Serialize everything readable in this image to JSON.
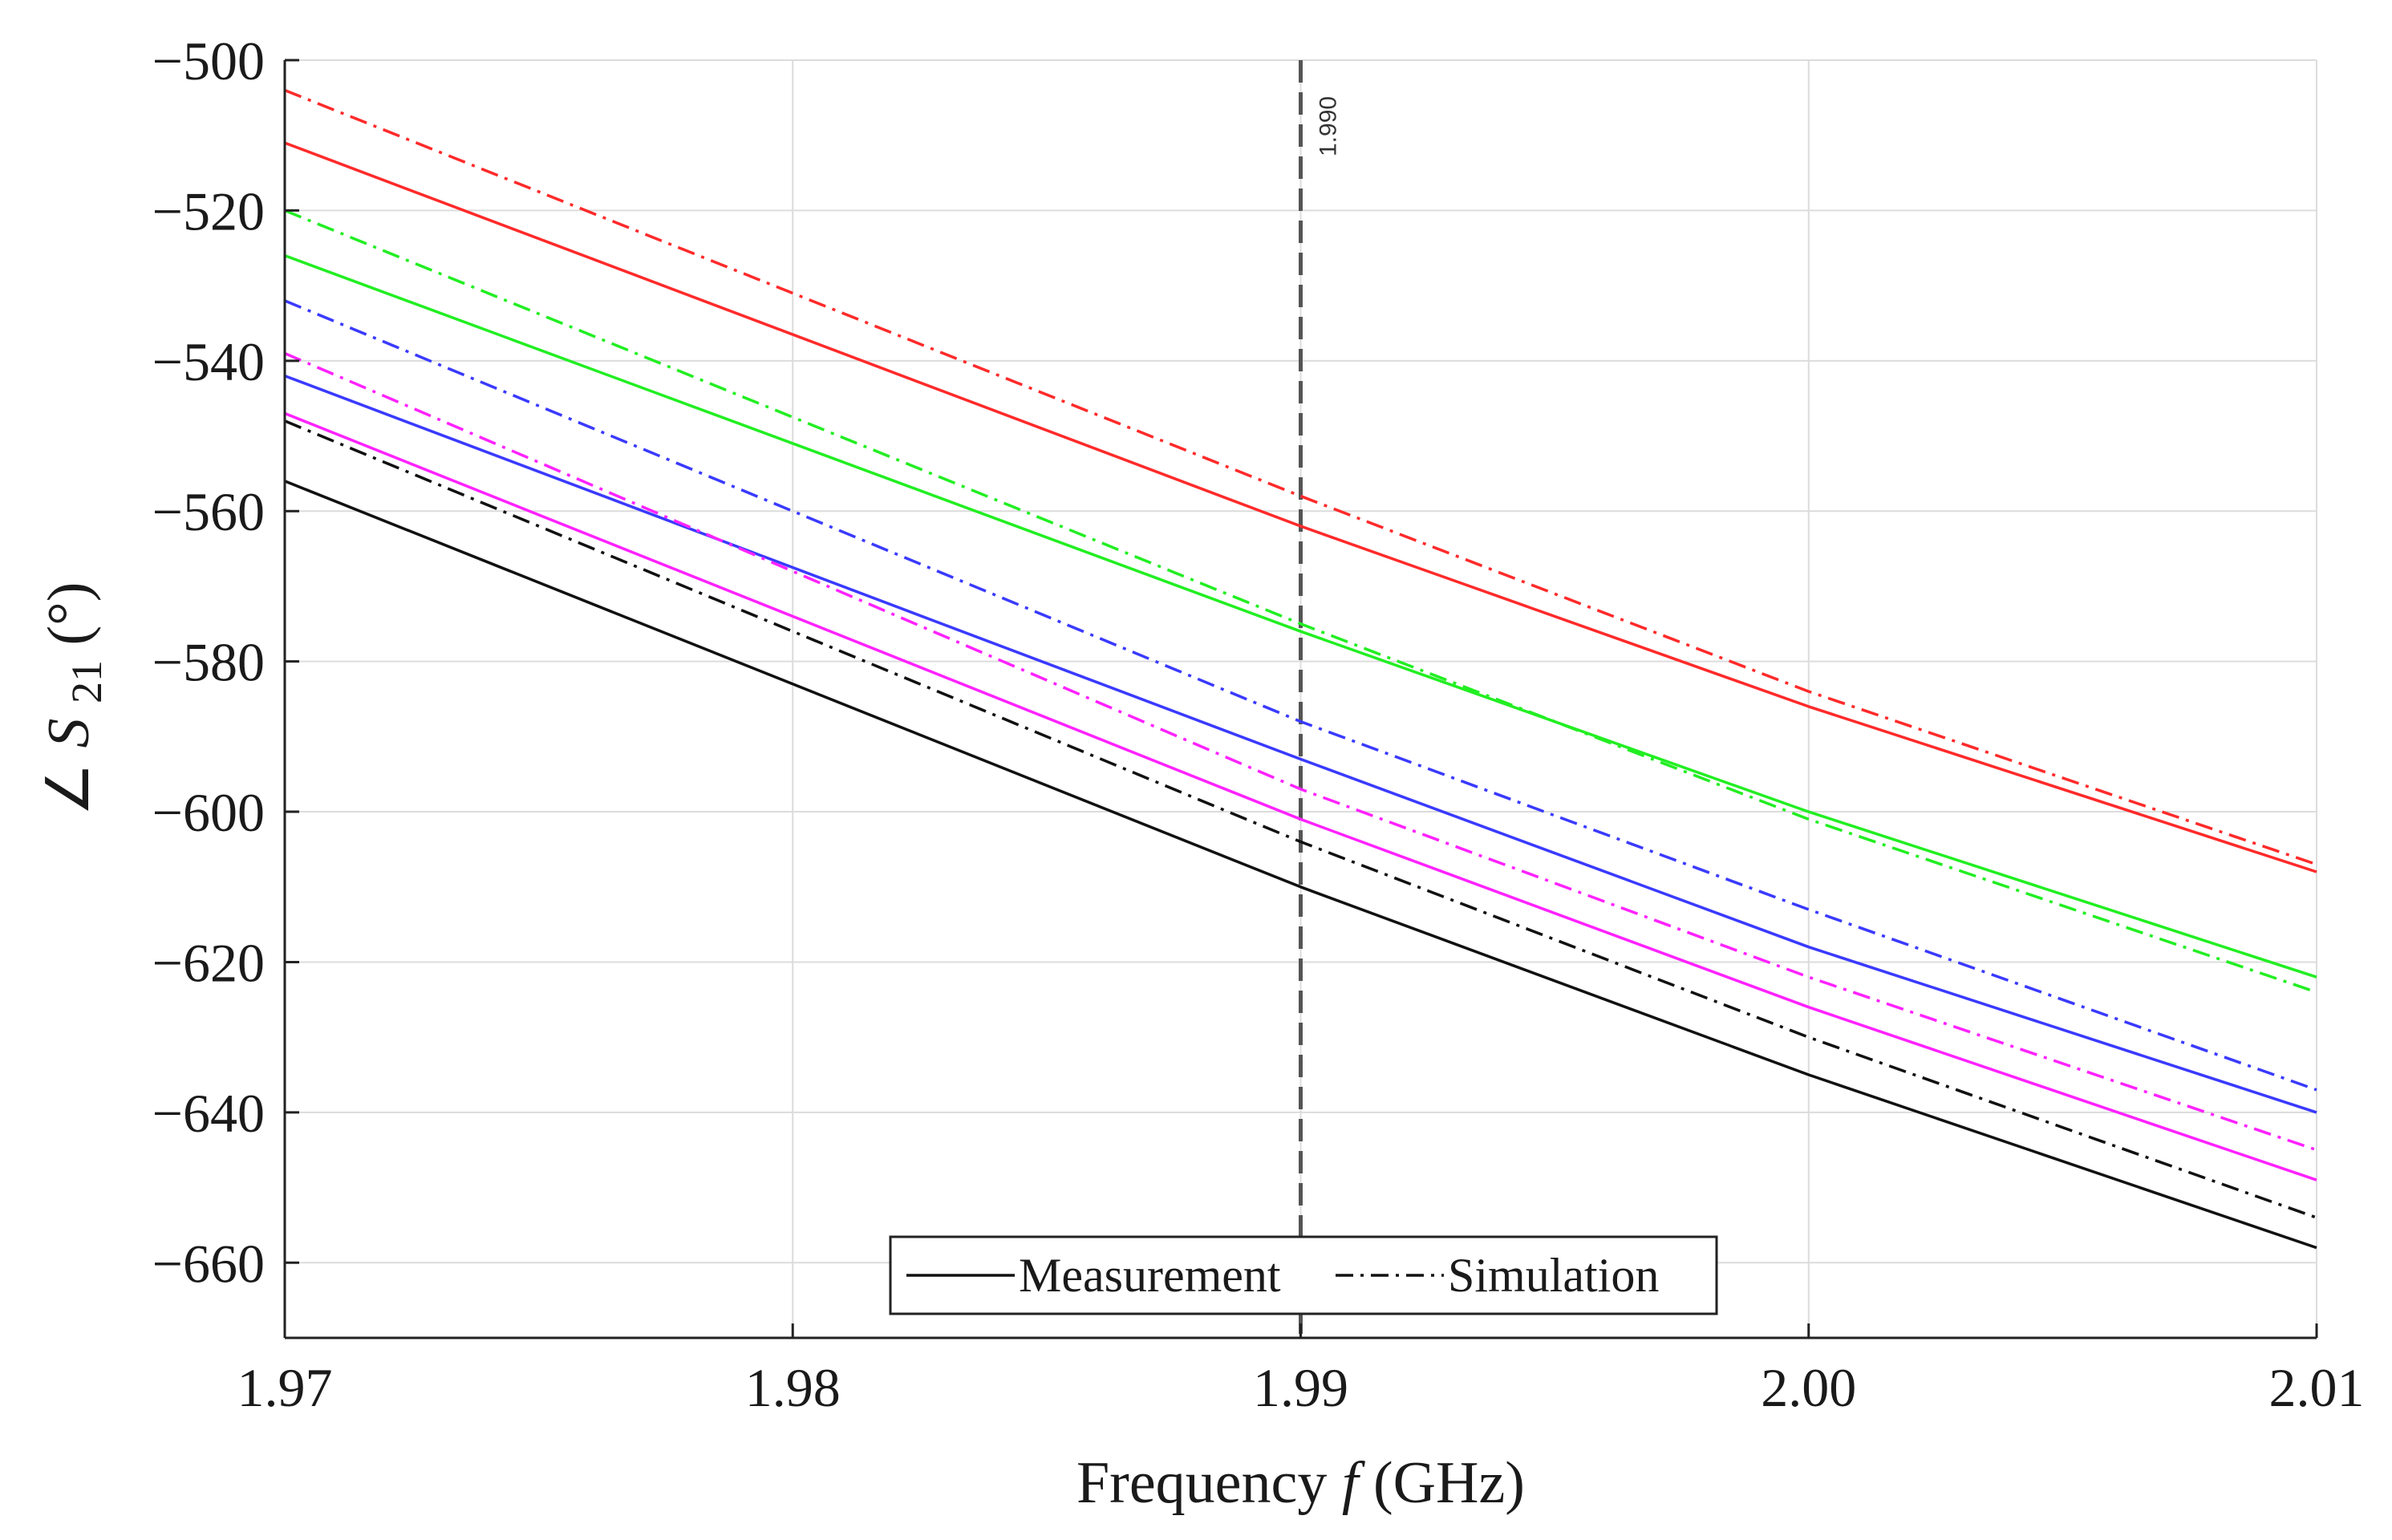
{
  "chart_data": {
    "type": "line",
    "title": "",
    "xlabel": "Frequency",
    "xlabel_var": "f",
    "xlabel_unit": "(GHz)",
    "ylabel_prefix": "∠",
    "ylabel_var": "S",
    "ylabel_sub": "21",
    "ylabel_unit": "(°)",
    "xlim": [
      1.97,
      2.01
    ],
    "ylim": [
      -670,
      -500
    ],
    "xticks": [
      1.97,
      1.98,
      1.99,
      2.0,
      2.01
    ],
    "xtick_labels": [
      "1.97",
      "1.98",
      "1.99",
      "2.00",
      "2.01"
    ],
    "yticks": [
      -500,
      -520,
      -540,
      -560,
      -580,
      -600,
      -620,
      -640,
      -660
    ],
    "ytick_labels": [
      "−500",
      "−520",
      "−540",
      "−560",
      "−580",
      "−600",
      "−620",
      "−640",
      "−660"
    ],
    "grid": true,
    "vline": {
      "x": 1.99,
      "label": "1.990",
      "color": "#555555"
    },
    "legend": {
      "placement": "bottom-center",
      "entries": [
        {
          "label": "Measurement",
          "style": "solid"
        },
        {
          "label": "Simulation",
          "style": "dashdot"
        }
      ]
    },
    "series": [
      {
        "name": "red measurement",
        "color": "#ff2a2a",
        "style": "solid",
        "x": [
          1.97,
          1.99,
          2.0,
          2.01
        ],
        "y": [
          -511,
          -562,
          -586,
          -608
        ]
      },
      {
        "name": "red simulation",
        "color": "#ff2a2a",
        "style": "dashdot",
        "x": [
          1.97,
          1.99,
          2.0,
          2.01
        ],
        "y": [
          -504,
          -558,
          -584,
          -607
        ]
      },
      {
        "name": "green measurement",
        "color": "#22ee22",
        "style": "solid",
        "x": [
          1.97,
          1.99,
          2.0,
          2.01
        ],
        "y": [
          -526,
          -576,
          -600,
          -622
        ]
      },
      {
        "name": "green simulation",
        "color": "#22ee22",
        "style": "dashdot",
        "x": [
          1.97,
          1.99,
          2.0,
          2.01
        ],
        "y": [
          -520,
          -575,
          -601,
          -624
        ]
      },
      {
        "name": "blue measurement",
        "color": "#3a3aff",
        "style": "solid",
        "x": [
          1.97,
          1.99,
          2.0,
          2.01
        ],
        "y": [
          -542,
          -593,
          -618,
          -640
        ]
      },
      {
        "name": "blue simulation",
        "color": "#3a3aff",
        "style": "dashdot",
        "x": [
          1.97,
          1.99,
          2.0,
          2.01
        ],
        "y": [
          -532,
          -588,
          -613,
          -637
        ]
      },
      {
        "name": "magenta measurement",
        "color": "#ff22ff",
        "style": "solid",
        "x": [
          1.97,
          1.99,
          2.0,
          2.01
        ],
        "y": [
          -547,
          -601,
          -626,
          -649
        ]
      },
      {
        "name": "magenta simulation",
        "color": "#ff22ff",
        "style": "dashdot",
        "x": [
          1.97,
          1.99,
          2.0,
          2.01
        ],
        "y": [
          -539,
          -597,
          -622,
          -645
        ]
      },
      {
        "name": "black measurement",
        "color": "#111111",
        "style": "solid",
        "x": [
          1.97,
          1.99,
          2.0,
          2.01
        ],
        "y": [
          -556,
          -610,
          -635,
          -658
        ]
      },
      {
        "name": "black simulation",
        "color": "#111111",
        "style": "dashdot",
        "x": [
          1.97,
          1.99,
          2.0,
          2.01
        ],
        "y": [
          -548,
          -604,
          -630,
          -654
        ]
      }
    ]
  }
}
